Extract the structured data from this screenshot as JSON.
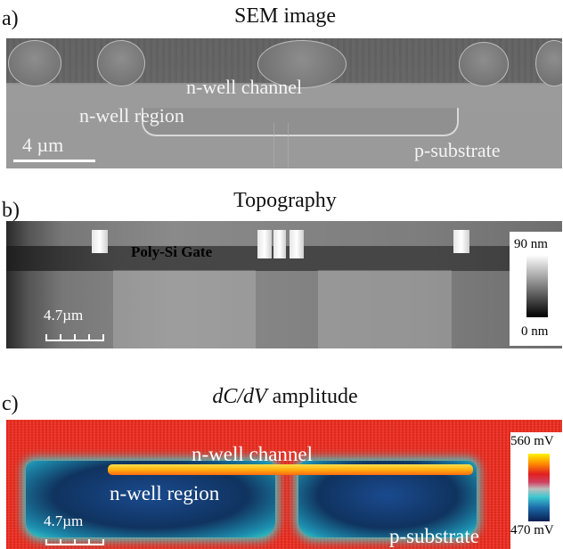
{
  "panel_a": {
    "letter": "a)",
    "title": "SEM image",
    "labels": {
      "channel": "n-well channel",
      "region": "n-well region",
      "substrate": "p-substrate"
    },
    "scale": "4 µm"
  },
  "panel_b": {
    "letter": "b)",
    "title": "Topography",
    "gate_label": "Poly-Si Gate",
    "scale": "4.7µm",
    "colorbar": {
      "max": "90 nm",
      "min": "0 nm"
    }
  },
  "panel_c": {
    "letter": "c)",
    "title_italic": "dC/dV",
    "title_rest": " amplitude",
    "labels": {
      "channel": "n-well channel",
      "region": "n-well region",
      "substrate": "p-substrate"
    },
    "scale": "4.7µm",
    "colorbar": {
      "max": "560 mV",
      "min": "470 mV"
    }
  },
  "colors": {
    "red_map": "#e0261d",
    "well_blue": "#10335f",
    "channel_yellow": "#ffd030",
    "cyan_edge": "#37d1c4"
  }
}
